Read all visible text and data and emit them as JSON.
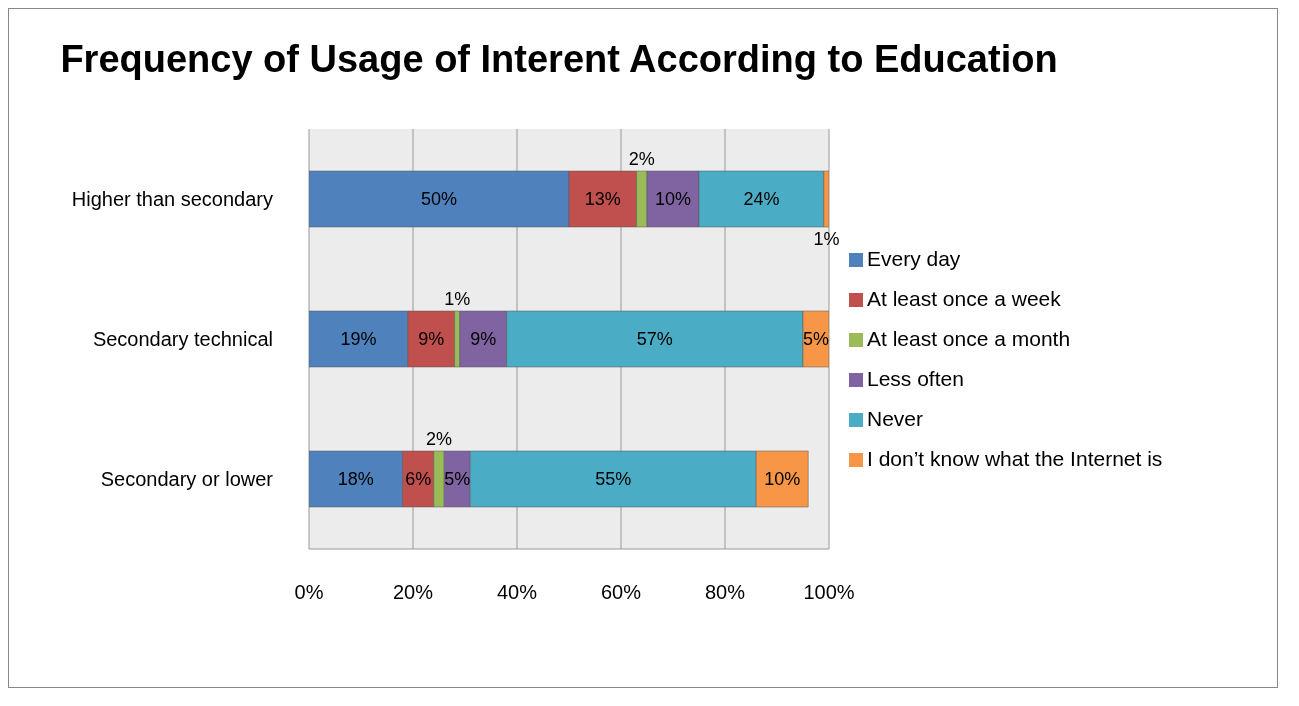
{
  "chart_data": {
    "type": "bar",
    "orientation": "horizontal",
    "stacked": true,
    "title": "Frequency of Usage of Interent According to Education",
    "categories": [
      "Higher than secondary",
      "Secondary technical",
      "Secondary or lower"
    ],
    "series": [
      {
        "name": "Every day",
        "color": "#4f81bd",
        "values": [
          50,
          19,
          18
        ],
        "value_labels": [
          "50%",
          "19%",
          "18%"
        ]
      },
      {
        "name": "At least once a week",
        "color": "#c0504d",
        "values": [
          13,
          9,
          6
        ],
        "value_labels": [
          "13%",
          "9%",
          "6%"
        ]
      },
      {
        "name": "At least once a month",
        "color": "#9bbb59",
        "values": [
          2,
          1,
          2
        ],
        "value_labels": [
          "2%",
          "1%",
          "2%"
        ]
      },
      {
        "name": "Less often",
        "color": "#8064a2",
        "values": [
          10,
          9,
          5
        ],
        "value_labels": [
          "10%",
          "9%",
          "5%"
        ]
      },
      {
        "name": "Never",
        "color": "#4bacc6",
        "values": [
          24,
          57,
          55
        ],
        "value_labels": [
          "24%",
          "57%",
          "55%"
        ]
      },
      {
        "name": "I don’t know what the Internet is",
        "color": "#f79646",
        "values": [
          1,
          5,
          10
        ],
        "value_labels": [
          "1%",
          "5%",
          "10%"
        ]
      }
    ],
    "xlim": [
      0,
      100
    ],
    "xticks": [
      {
        "value": 0,
        "label": "0%"
      },
      {
        "value": 20,
        "label": "20%"
      },
      {
        "value": 40,
        "label": "40%"
      },
      {
        "value": 60,
        "label": "60%"
      },
      {
        "value": 80,
        "label": "80%"
      },
      {
        "value": 100,
        "label": "100%"
      }
    ],
    "grid": "x",
    "legend": "right"
  }
}
